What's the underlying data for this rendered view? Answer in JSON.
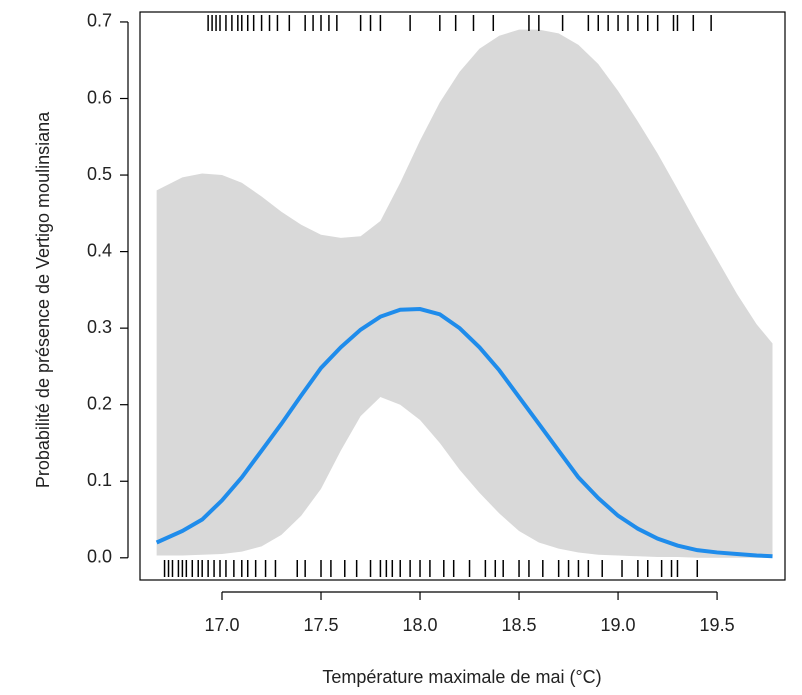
{
  "chart_data": {
    "type": "line",
    "xlabel": "Température maximale de mai (°C)",
    "ylabel": "Probabilité de présence de Vertigo moulinsiana",
    "x": [
      16.67,
      16.8,
      16.9,
      17.0,
      17.1,
      17.2,
      17.3,
      17.4,
      17.5,
      17.6,
      17.7,
      17.8,
      17.9,
      18.0,
      18.1,
      18.2,
      18.3,
      18.4,
      18.5,
      18.6,
      18.7,
      18.8,
      18.9,
      19.0,
      19.1,
      19.2,
      19.3,
      19.4,
      19.5,
      19.6,
      19.7,
      19.78
    ],
    "series": [
      {
        "color": "#1f8ceb",
        "values": [
          0.02,
          0.035,
          0.05,
          0.075,
          0.105,
          0.14,
          0.175,
          0.212,
          0.248,
          0.275,
          0.298,
          0.315,
          0.324,
          0.325,
          0.318,
          0.3,
          0.275,
          0.245,
          0.21,
          0.175,
          0.14,
          0.105,
          0.078,
          0.055,
          0.038,
          0.025,
          0.016,
          0.01,
          0.007,
          0.005,
          0.003,
          0.002
        ]
      }
    ],
    "band": {
      "color": "#d9d9d9",
      "lower": [
        0.003,
        0.003,
        0.004,
        0.005,
        0.008,
        0.015,
        0.03,
        0.055,
        0.09,
        0.14,
        0.185,
        0.21,
        0.2,
        0.18,
        0.15,
        0.115,
        0.085,
        0.058,
        0.035,
        0.02,
        0.012,
        0.007,
        0.004,
        0.003,
        0.002,
        0.001,
        0.001,
        0,
        0,
        0,
        0,
        0
      ],
      "upper": [
        0.48,
        0.497,
        0.502,
        0.5,
        0.49,
        0.472,
        0.452,
        0.435,
        0.422,
        0.418,
        0.42,
        0.44,
        0.49,
        0.545,
        0.595,
        0.635,
        0.665,
        0.682,
        0.69,
        0.69,
        0.685,
        0.67,
        0.645,
        0.61,
        0.57,
        0.528,
        0.482,
        0.435,
        0.39,
        0.345,
        0.305,
        0.28
      ]
    },
    "rug_top": [
      16.93,
      16.95,
      16.97,
      16.99,
      17.02,
      17.05,
      17.08,
      17.1,
      17.13,
      17.16,
      17.2,
      17.24,
      17.28,
      17.34,
      17.42,
      17.46,
      17.5,
      17.54,
      17.58,
      17.7,
      17.75,
      17.8,
      17.95,
      18.1,
      18.18,
      18.27,
      18.37,
      18.55,
      18.6,
      18.72,
      18.85,
      18.9,
      18.95,
      19.0,
      19.05,
      19.1,
      19.15,
      19.2,
      19.28,
      19.3,
      19.38,
      19.47
    ],
    "rug_bottom": [
      16.71,
      16.73,
      16.75,
      16.78,
      16.8,
      16.82,
      16.85,
      16.88,
      16.9,
      16.93,
      16.96,
      16.99,
      17.02,
      17.06,
      17.1,
      17.13,
      17.17,
      17.22,
      17.27,
      17.38,
      17.42,
      17.5,
      17.55,
      17.62,
      17.68,
      17.75,
      17.8,
      17.83,
      17.86,
      17.9,
      17.95,
      18.0,
      18.05,
      18.12,
      18.17,
      18.25,
      18.33,
      18.38,
      18.42,
      18.5,
      18.55,
      18.62,
      18.7,
      18.75,
      18.8,
      18.85,
      18.92,
      19.02,
      19.1,
      19.15,
      19.22,
      19.27,
      19.3,
      19.4
    ],
    "xlim": [
      16.586,
      19.843
    ],
    "ylim": [
      -0.029,
      0.713
    ],
    "xticks": [
      {
        "value": 17,
        "label": "17.0"
      },
      17.5,
      {
        "value": 18,
        "label": "18.0"
      },
      18.5,
      {
        "value": 19,
        "label": "19.0"
      },
      19.5
    ],
    "yticks": [
      {
        "value": 0,
        "label": "0.0"
      },
      0.1,
      0.2,
      0.3,
      0.4,
      0.5,
      0.6,
      0.7
    ]
  }
}
